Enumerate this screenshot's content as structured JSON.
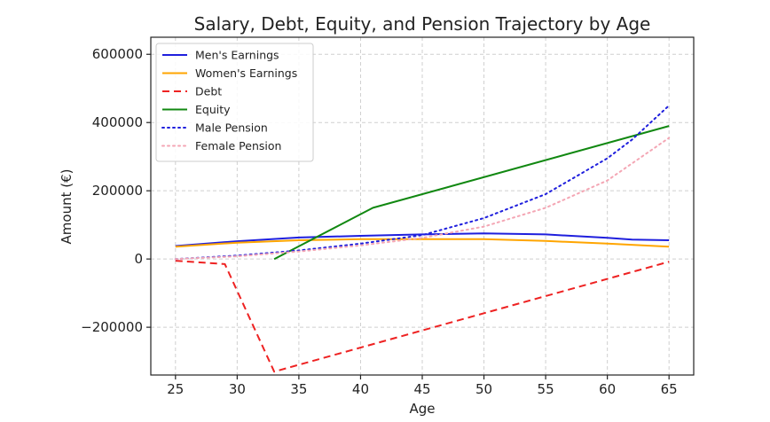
{
  "chart_data": {
    "type": "line",
    "title": "Salary, Debt, Equity, and Pension Trajectory by Age",
    "xlabel": "Age",
    "ylabel": "Amount (€)",
    "xlim": [
      23,
      67
    ],
    "ylim": [
      -340000,
      650000
    ],
    "xticks": [
      25,
      30,
      35,
      40,
      45,
      50,
      55,
      60,
      65
    ],
    "yticks": [
      -200000,
      0,
      200000,
      400000,
      600000
    ],
    "ytick_labels": [
      "−200000",
      "0",
      "200000",
      "400000",
      "600000"
    ],
    "grid": true,
    "legend_position": "upper-left",
    "series": [
      {
        "name": "Men's Earnings",
        "color": "#1f1fdd",
        "style": "solid",
        "x": [
          25,
          30,
          35,
          40,
          45,
          50,
          55,
          60,
          62,
          65
        ],
        "values": [
          38000,
          52000,
          63000,
          68000,
          72000,
          75000,
          72000,
          62000,
          57000,
          55000
        ]
      },
      {
        "name": "Women's Earnings",
        "color": "#ffa500",
        "style": "solid",
        "x": [
          25,
          30,
          35,
          40,
          45,
          50,
          55,
          60,
          65
        ],
        "values": [
          36000,
          48000,
          55000,
          58000,
          58000,
          58000,
          53000,
          45000,
          36000
        ]
      },
      {
        "name": "Debt",
        "color": "#ee2222",
        "style": "dashed",
        "x": [
          25,
          29,
          33,
          65
        ],
        "values": [
          -5000,
          -15000,
          -330000,
          -8000
        ]
      },
      {
        "name": "Equity",
        "color": "#118811",
        "style": "solid",
        "x": [
          33,
          41,
          65
        ],
        "values": [
          0,
          150000,
          390000
        ]
      },
      {
        "name": "Male Pension",
        "color": "#1f1fdd",
        "style": "dotted",
        "x": [
          25,
          30,
          35,
          40,
          45,
          50,
          55,
          60,
          62,
          65
        ],
        "values": [
          0,
          10000,
          25000,
          45000,
          70000,
          120000,
          190000,
          295000,
          350000,
          450000
        ]
      },
      {
        "name": "Female Pension",
        "color": "#f4a6b4",
        "style": "dotted",
        "x": [
          25,
          30,
          35,
          40,
          45,
          50,
          55,
          60,
          65
        ],
        "values": [
          0,
          8000,
          22000,
          40000,
          62000,
          95000,
          150000,
          230000,
          355000
        ]
      }
    ]
  }
}
